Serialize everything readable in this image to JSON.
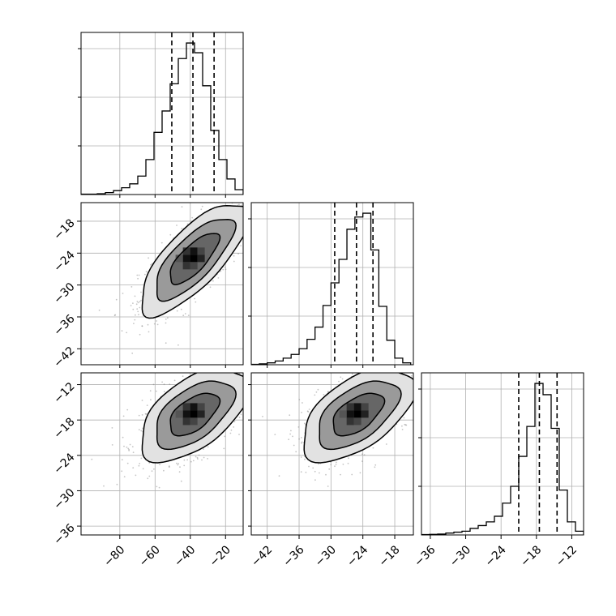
{
  "chart_data": {
    "type": "corner",
    "description_note": "",
    "parameters": [
      {
        "index": 0,
        "range": [
          -102,
          -10
        ],
        "ticks": [
          -80,
          -60,
          -40,
          -20
        ],
        "tick_labels": [
          "−80",
          "−60",
          "−40",
          "−20"
        ],
        "quantiles": [
          -50.5,
          -38.5,
          -26.5
        ],
        "histogram": {
          "type": "step",
          "bin_edges": [
            -102,
            -97.4,
            -92.8,
            -88.2,
            -83.6,
            -79,
            -74.4,
            -69.8,
            -65.2,
            -60.6,
            -56,
            -51.4,
            -46.8,
            -42.2,
            -37.6,
            -33,
            -28.4,
            -23.8,
            -19.2,
            -14.6,
            -10
          ],
          "counts": [
            0.2,
            0.2,
            0.4,
            1,
            2,
            3.5,
            5.5,
            9.5,
            18,
            32,
            43,
            57,
            70,
            78,
            73,
            56,
            33,
            18,
            8,
            2.5
          ]
        }
      },
      {
        "index": 1,
        "range": [
          -45,
          -14.5
        ],
        "ticks": [
          -42,
          -36,
          -30,
          -24,
          -18
        ],
        "tick_labels": [
          "−42",
          "−36",
          "−30",
          "−24",
          "−18"
        ],
        "quantiles": [
          -29.3,
          -25.2,
          -22.1
        ],
        "histogram": {
          "type": "step",
          "bin_edges": [
            -45,
            -43.5,
            -42,
            -40.5,
            -39,
            -37.5,
            -36,
            -34.5,
            -33,
            -31.5,
            -30,
            -28.5,
            -27,
            -25.5,
            -24,
            -22.5,
            -21,
            -19.5,
            -18,
            -16.5,
            -15
          ],
          "counts": [
            0.2,
            0.5,
            1,
            2,
            3.5,
            5.5,
            8.5,
            13.5,
            20,
            31.5,
            43.5,
            56,
            72,
            78.5,
            80.5,
            61,
            31,
            13,
            3.5,
            1
          ]
        }
      },
      {
        "index": 2,
        "range": [
          -37.5,
          -10
        ],
        "ticks": [
          -36,
          -30,
          -24,
          -18,
          -12
        ],
        "tick_labels": [
          "−36",
          "−30",
          "−24",
          "−18",
          "−12"
        ],
        "quantiles": [
          -21,
          -17.5,
          -14.5
        ],
        "histogram": {
          "type": "step",
          "bin_edges": [
            -37.5,
            -36.125,
            -34.75,
            -33.375,
            -32,
            -30.625,
            -29.25,
            -27.875,
            -26.5,
            -25.125,
            -23.75,
            -22.375,
            -21,
            -19.625,
            -18.25,
            -16.875,
            -15.5,
            -14.125,
            -12.75,
            -11.375,
            -10
          ],
          "counts": [
            0.2,
            0.3,
            0.5,
            1,
            1.5,
            2,
            3.5,
            5,
            7,
            10,
            17,
            26,
            42,
            58,
            81,
            75,
            57,
            24,
            7,
            2
          ]
        }
      }
    ],
    "pairs": [
      {
        "x": 0,
        "y": 1,
        "mean": [
          -38,
          -25
        ],
        "std": [
          14,
          4.8
        ],
        "corr": 0.75,
        "scatter_count": 900,
        "contour_levels": [
          1.0,
          1.6,
          2.2
        ]
      },
      {
        "x": 0,
        "y": 2,
        "mean": [
          -38,
          -17
        ],
        "std": [
          14,
          3.6
        ],
        "corr": 0.55,
        "scatter_count": 900,
        "contour_levels": [
          1.0,
          1.6,
          2.2
        ]
      },
      {
        "x": 1,
        "y": 2,
        "mean": [
          -25,
          -17
        ],
        "std": [
          4.8,
          3.6
        ],
        "corr": 0.55,
        "scatter_count": 900,
        "contour_levels": [
          1.0,
          1.6,
          2.2
        ]
      }
    ],
    "grid": true,
    "colors": {
      "line": "#000000",
      "grid": "#b0b0b0",
      "scatter": "#7f7f7f",
      "fill_dark": "#111111",
      "fill_mid": "#666666",
      "fill_light": "#cfcfcf"
    }
  }
}
